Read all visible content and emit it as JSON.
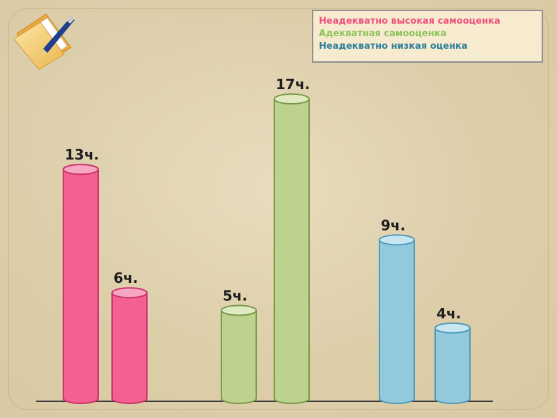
{
  "colors": {
    "pink": "#f4608f",
    "green": "#bdd28e",
    "blue": "#92c9dd",
    "legend_pink": "#ee4f7d",
    "legend_green": "#8ec25a",
    "legend_blue": "#2e7f9c"
  },
  "chart_data": {
    "type": "bar",
    "style": "cylinder",
    "legend": {
      "placement": "top-right",
      "entries": [
        "Неадекватно высокая самооценка",
        "Адекватная самооценка",
        "Неадекватно низкая оценка"
      ]
    },
    "series": [
      {
        "name": "Неадекватно высокая самооценка",
        "values": [
          13,
          6
        ],
        "labels": [
          "13ч.",
          "6ч."
        ]
      },
      {
        "name": "Адекватная самооценка",
        "values": [
          5,
          17
        ],
        "labels": [
          "5ч.",
          "17ч."
        ]
      },
      {
        "name": "Неадекватно низкая оценка",
        "values": [
          9,
          4
        ],
        "labels": [
          "9ч.",
          "4ч."
        ]
      }
    ],
    "ylim": [
      0,
      17
    ],
    "grid": false,
    "title": "",
    "xlabel": "",
    "ylabel": ""
  },
  "icons": {
    "logo": "folder-with-pen-icon"
  }
}
